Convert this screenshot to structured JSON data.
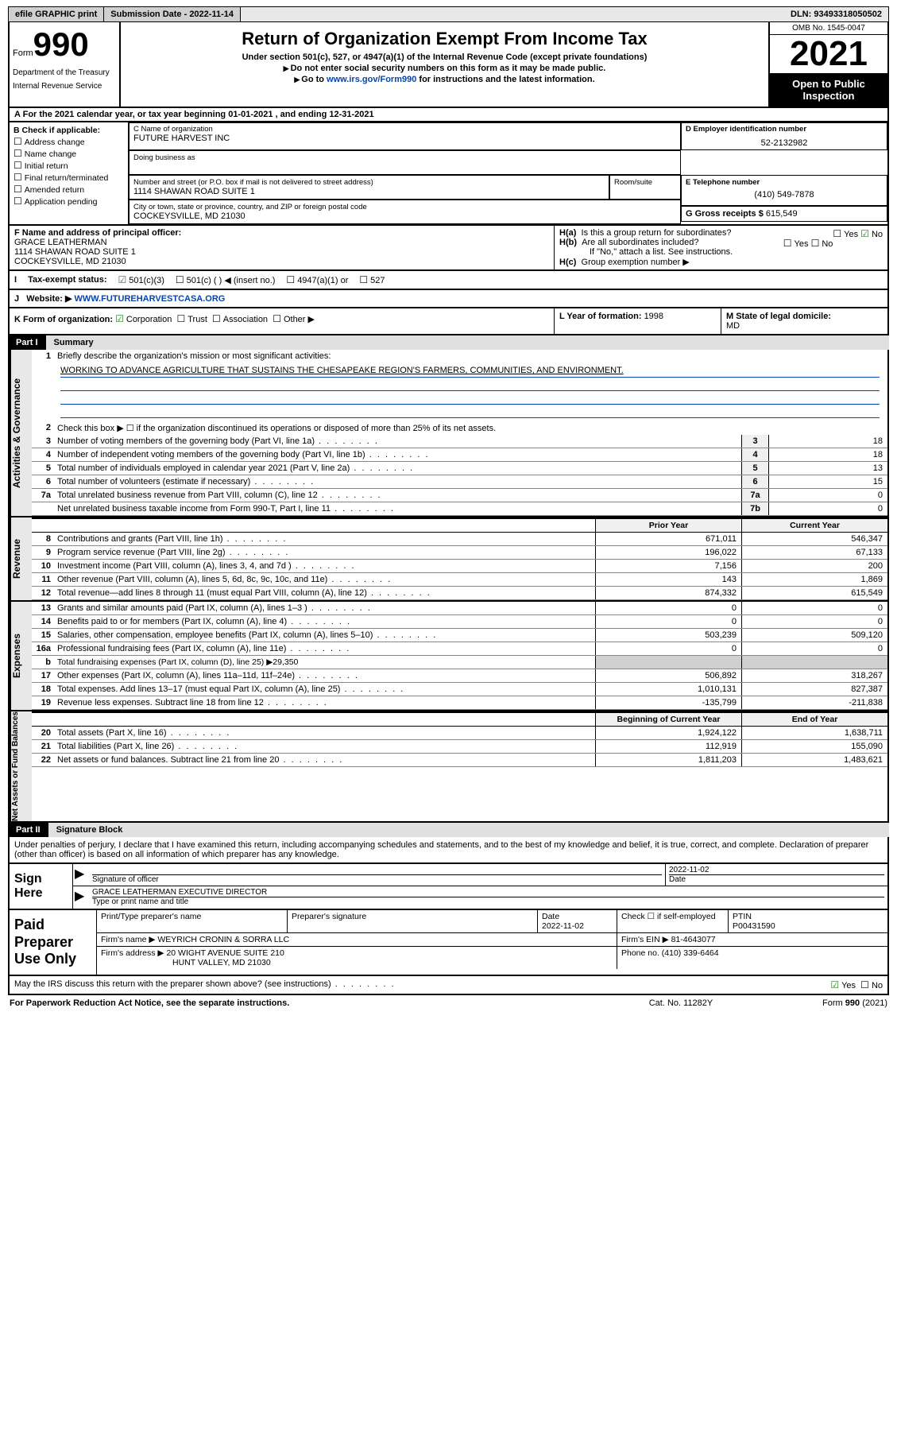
{
  "topbar": {
    "efile": "efile GRAPHIC print",
    "submission_label": "Submission Date - 2022-11-14",
    "dln": "DLN: 93493318050502"
  },
  "header": {
    "form_prefix": "Form",
    "form_no": "990",
    "dept": "Department of the Treasury",
    "irs": "Internal Revenue Service",
    "title": "Return of Organization Exempt From Income Tax",
    "sub1": "Under section 501(c), 527, or 4947(a)(1) of the Internal Revenue Code (except private foundations)",
    "sub2": "Do not enter social security numbers on this form as it may be made public.",
    "goto_pre": "Go to ",
    "goto_link": "www.irs.gov/Form990",
    "goto_post": " for instructions and the latest information.",
    "omb": "OMB No. 1545-0047",
    "year": "2021",
    "open": "Open to Public Inspection"
  },
  "A": {
    "text": "For the 2021 calendar year, or tax year beginning 01-01-2021   , and ending 12-31-2021"
  },
  "B": {
    "label": "B Check if applicable:",
    "opts": [
      "Address change",
      "Name change",
      "Initial return",
      "Final return/terminated",
      "Amended return",
      "Application pending"
    ]
  },
  "C": {
    "label": "C Name of organization",
    "name": "FUTURE HARVEST INC",
    "dba_label": "Doing business as",
    "addr_label": "Number and street (or P.O. box if mail is not delivered to street address)",
    "room": "Room/suite",
    "addr": "1114 SHAWAN ROAD SUITE 1",
    "csz_label": "City or town, state or province, country, and ZIP or foreign postal code",
    "csz": "COCKEYSVILLE, MD  21030"
  },
  "D": {
    "label": "D Employer identification number",
    "val": "52-2132982"
  },
  "E": {
    "label": "E Telephone number",
    "val": "(410) 549-7878"
  },
  "G": {
    "label": "G Gross receipts $ ",
    "val": "615,549"
  },
  "F": {
    "label": "F  Name and address of principal officer:",
    "name": "GRACE LEATHERMAN",
    "addr1": "1114 SHAWAN ROAD SUITE 1",
    "addr2": "COCKEYSVILLE, MD  21030"
  },
  "H": {
    "a": "Is this a group return for subordinates?",
    "b": "Are all subordinates included?",
    "note": "If \"No,\" attach a list. See instructions.",
    "c": "Group exemption number ▶"
  },
  "I": {
    "label": "Tax-exempt status:",
    "o1": "501(c)(3)",
    "o2": "501(c) (  ) ◀ (insert no.)",
    "o3": "4947(a)(1) or",
    "o4": "527"
  },
  "J": {
    "label": "Website: ▶",
    "url": "WWW.FUTUREHARVESTCASA.ORG"
  },
  "K": {
    "label": "K Form of organization:",
    "o1": "Corporation",
    "o2": "Trust",
    "o3": "Association",
    "o4": "Other ▶"
  },
  "L": {
    "label": "L Year of formation: ",
    "val": "1998"
  },
  "M": {
    "label": "M State of legal domicile:",
    "val": "MD"
  },
  "part1": {
    "tag": "Part I",
    "title": "Summary"
  },
  "tabs": {
    "ag": "Activities & Governance",
    "rev": "Revenue",
    "exp": "Expenses",
    "na": "Net Assets or Fund Balances"
  },
  "q1": {
    "label": "Briefly describe the organization's mission or most significant activities:",
    "text": "WORKING TO ADVANCE AGRICULTURE THAT SUSTAINS THE CHESAPEAKE REGION'S FARMERS, COMMUNITIES, AND ENVIRONMENT."
  },
  "q2": "Check this box ▶ ☐  if the organization discontinued its operations or disposed of more than 25% of its net assets.",
  "lines_single": [
    {
      "n": "3",
      "t": "Number of voting members of the governing body (Part VI, line 1a)",
      "box": "3",
      "v": "18"
    },
    {
      "n": "4",
      "t": "Number of independent voting members of the governing body (Part VI, line 1b)",
      "box": "4",
      "v": "18"
    },
    {
      "n": "5",
      "t": "Total number of individuals employed in calendar year 2021 (Part V, line 2a)",
      "box": "5",
      "v": "13"
    },
    {
      "n": "6",
      "t": "Total number of volunteers (estimate if necessary)",
      "box": "6",
      "v": "15"
    },
    {
      "n": "7a",
      "t": "Total unrelated business revenue from Part VIII, column (C), line 12",
      "box": "7a",
      "v": "0"
    },
    {
      "n": "",
      "t": "Net unrelated business taxable income from Form 990-T, Part I, line 11",
      "box": "7b",
      "v": "0"
    }
  ],
  "cols": {
    "prior": "Prior Year",
    "current": "Current Year",
    "begin": "Beginning of Current Year",
    "end": "End of Year"
  },
  "revenue": [
    {
      "n": "8",
      "t": "Contributions and grants (Part VIII, line 1h)",
      "p": "671,011",
      "c": "546,347"
    },
    {
      "n": "9",
      "t": "Program service revenue (Part VIII, line 2g)",
      "p": "196,022",
      "c": "67,133"
    },
    {
      "n": "10",
      "t": "Investment income (Part VIII, column (A), lines 3, 4, and 7d )",
      "p": "7,156",
      "c": "200"
    },
    {
      "n": "11",
      "t": "Other revenue (Part VIII, column (A), lines 5, 6d, 8c, 9c, 10c, and 11e)",
      "p": "143",
      "c": "1,869"
    },
    {
      "n": "12",
      "t": "Total revenue—add lines 8 through 11 (must equal Part VIII, column (A), line 12)",
      "p": "874,332",
      "c": "615,549"
    }
  ],
  "expenses": [
    {
      "n": "13",
      "t": "Grants and similar amounts paid (Part IX, column (A), lines 1–3 )",
      "p": "0",
      "c": "0"
    },
    {
      "n": "14",
      "t": "Benefits paid to or for members (Part IX, column (A), line 4)",
      "p": "0",
      "c": "0"
    },
    {
      "n": "15",
      "t": "Salaries, other compensation, employee benefits (Part IX, column (A), lines 5–10)",
      "p": "503,239",
      "c": "509,120"
    },
    {
      "n": "16a",
      "t": "Professional fundraising fees (Part IX, column (A), line 11e)",
      "p": "0",
      "c": "0"
    }
  ],
  "exp16b": {
    "n": "b",
    "t": "Total fundraising expenses (Part IX, column (D), line 25) ▶29,350"
  },
  "expenses2": [
    {
      "n": "17",
      "t": "Other expenses (Part IX, column (A), lines 11a–11d, 11f–24e)",
      "p": "506,892",
      "c": "318,267"
    },
    {
      "n": "18",
      "t": "Total expenses. Add lines 13–17 (must equal Part IX, column (A), line 25)",
      "p": "1,010,131",
      "c": "827,387"
    },
    {
      "n": "19",
      "t": "Revenue less expenses. Subtract line 18 from line 12",
      "p": "-135,799",
      "c": "-211,838"
    }
  ],
  "netassets": [
    {
      "n": "20",
      "t": "Total assets (Part X, line 16)",
      "p": "1,924,122",
      "c": "1,638,711"
    },
    {
      "n": "21",
      "t": "Total liabilities (Part X, line 26)",
      "p": "112,919",
      "c": "155,090"
    },
    {
      "n": "22",
      "t": "Net assets or fund balances. Subtract line 21 from line 20",
      "p": "1,811,203",
      "c": "1,483,621"
    }
  ],
  "part2": {
    "tag": "Part II",
    "title": "Signature Block"
  },
  "penalty": "Under penalties of perjury, I declare that I have examined this return, including accompanying schedules and statements, and to the best of my knowledge and belief, it is true, correct, and complete. Declaration of preparer (other than officer) is based on all information of which preparer has any knowledge.",
  "sign": {
    "here": "Sign Here",
    "sig_label": "Signature of officer",
    "date_label": "Date",
    "date": "2022-11-02",
    "name": "GRACE LEATHERMAN  EXECUTIVE DIRECTOR",
    "name_label": "Type or print name and title"
  },
  "prep": {
    "title": "Paid Preparer Use Only",
    "h1": "Print/Type preparer's name",
    "h2": "Preparer's signature",
    "h3": "Date",
    "h3v": "2022-11-02",
    "h4": "Check ☐ if self-employed",
    "h5": "PTIN",
    "h5v": "P00431590",
    "firm_label": "Firm's name     ▶",
    "firm": "WEYRICH CRONIN & SORRA LLC",
    "ein_label": "Firm's EIN ▶",
    "ein": "81-4643077",
    "addr_label": "Firm's address ▶",
    "addr1": "20 WIGHT AVENUE SUITE 210",
    "addr2": "HUNT VALLEY, MD  21030",
    "phone_label": "Phone no. ",
    "phone": "(410) 339-6464"
  },
  "discuss": {
    "t": "May the IRS discuss this return with the preparer shown above? (see instructions)",
    "yes": "Yes",
    "no": "No"
  },
  "footer": {
    "pra": "For Paperwork Reduction Act Notice, see the separate instructions.",
    "cat": "Cat. No. 11282Y",
    "form": "Form 990 (2021)"
  }
}
